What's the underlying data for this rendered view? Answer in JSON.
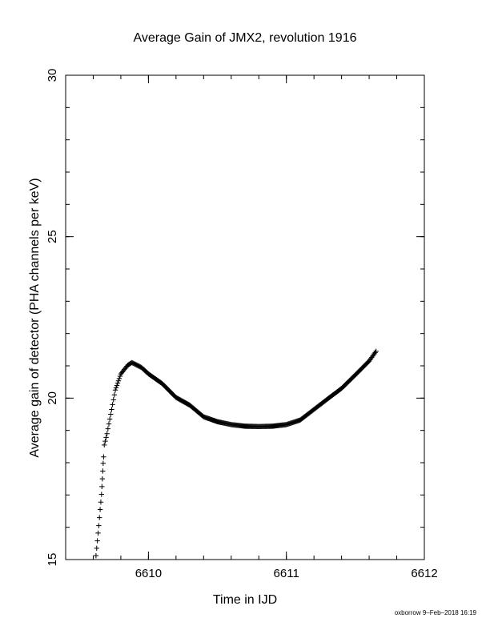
{
  "footer": {
    "stamp": "oxborrow  9–Feb–2018 16:19"
  },
  "chart_data": {
    "type": "scatter",
    "title": "Average Gain of JMX2, revolution 1916",
    "xlabel": "Time in IJD",
    "ylabel": "Average gain of detector (PHA channels per keV)",
    "xlim": [
      6609.4,
      6612.0
    ],
    "ylim": [
      15,
      30
    ],
    "xticks": [
      6610,
      6611,
      6612
    ],
    "xtick_labels": [
      "6610",
      "6611",
      "6612"
    ],
    "xminor_step": 0.2,
    "yticks": [
      15,
      20,
      25,
      30
    ],
    "ytick_labels": [
      "15",
      "20",
      "25",
      "30"
    ],
    "yminor_step": 1,
    "grid": false,
    "legend": "none",
    "marker": "plus",
    "color": "#000000",
    "series": [
      {
        "points": [
          [
            6609.62,
            15.12
          ],
          [
            6609.625,
            15.35
          ],
          [
            6609.63,
            15.58
          ],
          [
            6609.635,
            15.82
          ],
          [
            6609.64,
            16.05
          ],
          [
            6609.645,
            16.3
          ],
          [
            6609.65,
            16.55
          ],
          [
            6609.655,
            16.78
          ],
          [
            6609.66,
            17.02
          ],
          [
            6609.663,
            17.26
          ],
          [
            6609.666,
            17.5
          ],
          [
            6609.669,
            17.74
          ],
          [
            6609.672,
            17.98
          ],
          [
            6609.675,
            18.18
          ],
          [
            6609.68,
            18.55
          ],
          [
            6609.7,
            18.9
          ],
          [
            6609.72,
            19.35
          ],
          [
            6609.74,
            19.8
          ],
          [
            6609.76,
            20.25
          ],
          [
            6609.8,
            20.75
          ],
          [
            6609.85,
            21.02
          ],
          [
            6609.88,
            21.1
          ],
          [
            6609.95,
            20.95
          ],
          [
            6610.0,
            20.75
          ],
          [
            6610.1,
            20.45
          ],
          [
            6610.2,
            20.02
          ],
          [
            6610.3,
            19.78
          ],
          [
            6610.4,
            19.42
          ],
          [
            6610.5,
            19.27
          ],
          [
            6610.6,
            19.18
          ],
          [
            6610.7,
            19.13
          ],
          [
            6610.8,
            19.12
          ],
          [
            6610.9,
            19.13
          ],
          [
            6611.0,
            19.18
          ],
          [
            6611.1,
            19.32
          ],
          [
            6611.2,
            19.65
          ],
          [
            6611.3,
            19.98
          ],
          [
            6611.4,
            20.3
          ],
          [
            6611.5,
            20.72
          ],
          [
            6611.6,
            21.15
          ],
          [
            6611.65,
            21.45
          ]
        ]
      }
    ]
  }
}
